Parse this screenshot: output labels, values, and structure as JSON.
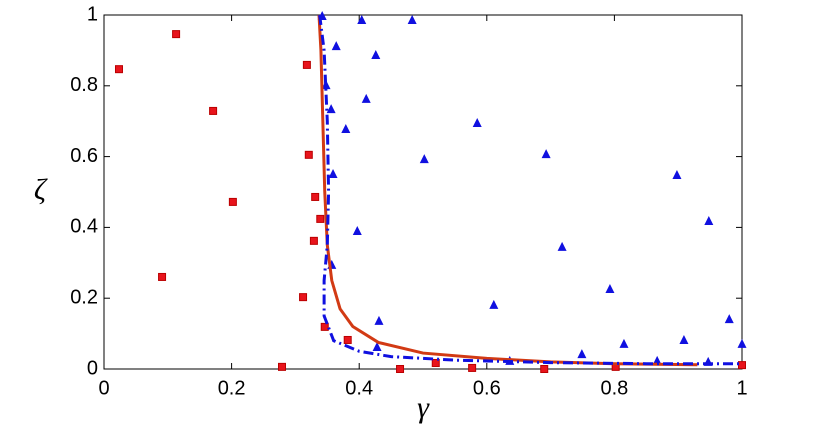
{
  "chart_data": {
    "type": "scatter",
    "x_label": "γ",
    "y_label": "ζ",
    "xlim": [
      0,
      1
    ],
    "ylim": [
      0,
      1
    ],
    "xticks": [
      0,
      0.2,
      0.4,
      0.6,
      0.8,
      1
    ],
    "yticks": [
      0,
      0.2,
      0.4,
      0.6,
      0.8,
      1
    ],
    "series": [
      {
        "kind": "square",
        "color": "#e8141c",
        "x": [
          0.0235,
          0.113,
          0.171,
          0.202,
          0.091,
          0.318,
          0.321,
          0.331,
          0.339,
          0.329,
          0.312,
          0.346,
          0.382,
          0.279,
          0.464,
          0.52,
          0.577,
          0.69,
          0.802,
          1.0
        ],
        "values": [
          0.847,
          0.946,
          0.729,
          0.472,
          0.26,
          0.859,
          0.605,
          0.486,
          0.424,
          0.362,
          0.203,
          0.119,
          0.082,
          0.006,
          0.0,
          0.017,
          0.003,
          0.0,
          0.006,
          0.011
        ]
      },
      {
        "kind": "triangle",
        "color": "#1010e0",
        "x": [
          0.342,
          0.364,
          0.404,
          0.483,
          0.426,
          0.348,
          0.411,
          0.356,
          0.379,
          0.585,
          0.502,
          0.693,
          0.359,
          0.898,
          0.397,
          0.718,
          0.948,
          0.357,
          0.611,
          0.793,
          0.431,
          0.98,
          0.815,
          0.909,
          1.0,
          0.749,
          0.636,
          0.867,
          0.947,
          0.428
        ],
        "values": [
          0.997,
          0.912,
          0.986,
          0.986,
          0.887,
          0.802,
          0.763,
          0.734,
          0.678,
          0.695,
          0.593,
          0.607,
          0.551,
          0.548,
          0.39,
          0.345,
          0.418,
          0.294,
          0.181,
          0.226,
          0.136,
          0.141,
          0.071,
          0.082,
          0.071,
          0.042,
          0.023,
          0.023,
          0.02,
          0.062
        ]
      },
      {
        "kind": "line",
        "color": "#d23a14",
        "x": [
          0.337,
          0.34,
          0.343,
          0.346,
          0.35,
          0.357,
          0.37,
          0.39,
          0.43,
          0.5,
          0.6,
          0.7,
          0.8,
          0.93
        ],
        "values": [
          1.0,
          0.9,
          0.7,
          0.5,
          0.35,
          0.25,
          0.17,
          0.12,
          0.075,
          0.045,
          0.03,
          0.02,
          0.015,
          0.012
        ]
      },
      {
        "kind": "dashdot",
        "color": "#1010e0",
        "x": [
          0.338,
          0.345,
          0.35,
          0.352,
          0.35,
          0.345,
          0.345,
          0.36,
          0.4,
          0.45,
          0.55,
          0.7,
          0.85,
          1.0
        ],
        "values": [
          1.0,
          0.9,
          0.7,
          0.5,
          0.35,
          0.25,
          0.15,
          0.08,
          0.05,
          0.035,
          0.025,
          0.018,
          0.015,
          0.015
        ]
      }
    ]
  }
}
